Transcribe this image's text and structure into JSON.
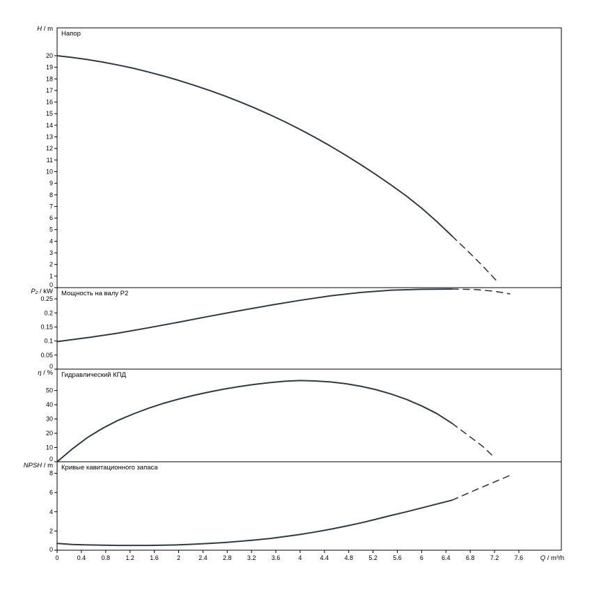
{
  "style": {
    "line_color": "#2f3a42",
    "axis_color": "#000000",
    "text_color": "#000000",
    "background": "#ffffff"
  },
  "xaxis": {
    "label_var": "Q",
    "label_unit": " / m³/h",
    "xlim": [
      0,
      8.3
    ],
    "tick_values": [
      0,
      0.4,
      0.8,
      1.2,
      1.6,
      2,
      2.4,
      2.8,
      3.2,
      3.6,
      4,
      4.4,
      4.8,
      5.2,
      5.6,
      6,
      6.4,
      6.8,
      7.2,
      7.6
    ],
    "tick_labels": [
      "0",
      "0.4",
      "0.8",
      "1.2",
      "1.6",
      "2",
      "2.4",
      "2.8",
      "3.2",
      "3.6",
      "4",
      "4.4",
      "4.8",
      "5.2",
      "5.6",
      "6",
      "6.4",
      "6.8",
      "7.2",
      "7.6"
    ]
  },
  "chart_data": [
    {
      "type": "line",
      "title": "Напор",
      "ylabel_var": "H",
      "ylabel_unit": " / m",
      "ylim": [
        0,
        22.4
      ],
      "ytick_values": [
        0,
        1,
        2,
        3,
        4,
        5,
        6,
        7,
        8,
        9,
        10,
        11,
        12,
        13,
        14,
        15,
        16,
        17,
        18,
        19,
        20
      ],
      "ytick_labels": [
        "0",
        "1",
        "2",
        "3",
        "4",
        "5",
        "6",
        "7",
        "8",
        "9",
        "10",
        "11",
        "12",
        "13",
        "14",
        "15",
        "16",
        "17",
        "18",
        "19",
        "20"
      ],
      "grid": false,
      "series": [
        {
          "name": "head-solid",
          "style": "solid",
          "points": [
            [
              0,
              20
            ],
            [
              0.25,
              19.85
            ],
            [
              0.5,
              19.67
            ],
            [
              0.75,
              19.45
            ],
            [
              1,
              19.2
            ],
            [
              1.25,
              18.92
            ],
            [
              1.5,
              18.6
            ],
            [
              1.75,
              18.25
            ],
            [
              2,
              17.87
            ],
            [
              2.25,
              17.46
            ],
            [
              2.5,
              17.02
            ],
            [
              2.75,
              16.55
            ],
            [
              3,
              16.04
            ],
            [
              3.25,
              15.5
            ],
            [
              3.5,
              14.92
            ],
            [
              3.75,
              14.3
            ],
            [
              4,
              13.64
            ],
            [
              4.25,
              12.94
            ],
            [
              4.5,
              12.2
            ],
            [
              4.75,
              11.42
            ],
            [
              5,
              10.6
            ],
            [
              5.25,
              9.74
            ],
            [
              5.5,
              8.84
            ],
            [
              5.75,
              7.9
            ],
            [
              6,
              6.85
            ],
            [
              6.25,
              5.7
            ],
            [
              6.5,
              4.45
            ]
          ]
        },
        {
          "name": "head-extrapolated",
          "style": "dashed",
          "points": [
            [
              6.5,
              4.45
            ],
            [
              6.75,
              3.2
            ],
            [
              7,
              1.9
            ],
            [
              7.25,
              0.5
            ]
          ]
        }
      ]
    },
    {
      "type": "line",
      "title": "Мощность на валу P2",
      "ylabel_var": "P₂",
      "ylabel_unit": " / kW",
      "ylim": [
        0,
        0.29
      ],
      "ytick_values": [
        0,
        0.05,
        0.1,
        0.15,
        0.2,
        0.25
      ],
      "ytick_labels": [
        "0",
        "0.05",
        "0.1",
        "0.15",
        "0.2",
        "0.25"
      ],
      "grid": false,
      "series": [
        {
          "name": "power-solid",
          "style": "solid",
          "points": [
            [
              0,
              0.098
            ],
            [
              0.5,
              0.112
            ],
            [
              1,
              0.128
            ],
            [
              1.5,
              0.147
            ],
            [
              2,
              0.167
            ],
            [
              2.5,
              0.188
            ],
            [
              3,
              0.208
            ],
            [
              3.5,
              0.227
            ],
            [
              4,
              0.245
            ],
            [
              4.5,
              0.261
            ],
            [
              5,
              0.273
            ],
            [
              5.5,
              0.281
            ],
            [
              6,
              0.284
            ],
            [
              6.5,
              0.285
            ]
          ]
        },
        {
          "name": "power-extrapolated",
          "style": "dashed",
          "points": [
            [
              6.5,
              0.285
            ],
            [
              6.9,
              0.283
            ],
            [
              7.2,
              0.277
            ],
            [
              7.45,
              0.268
            ]
          ]
        }
      ]
    },
    {
      "type": "line",
      "title": "Гидравлический КПД",
      "ylabel_var": "η",
      "ylabel_unit": " / %",
      "ylim": [
        0,
        65
      ],
      "ytick_values": [
        0,
        10,
        20,
        30,
        40,
        50
      ],
      "ytick_labels": [
        "0",
        "10",
        "20",
        "30",
        "40",
        "50"
      ],
      "grid": false,
      "series": [
        {
          "name": "efficiency-solid",
          "style": "solid",
          "points": [
            [
              0,
              0
            ],
            [
              0.25,
              9
            ],
            [
              0.5,
              17
            ],
            [
              0.75,
              23.5
            ],
            [
              1,
              29
            ],
            [
              1.25,
              33.5
            ],
            [
              1.5,
              37.5
            ],
            [
              1.75,
              41
            ],
            [
              2,
              44
            ],
            [
              2.25,
              46.6
            ],
            [
              2.5,
              48.9
            ],
            [
              2.75,
              51
            ],
            [
              3,
              52.8
            ],
            [
              3.25,
              54.3
            ],
            [
              3.5,
              55.5
            ],
            [
              3.75,
              56.5
            ],
            [
              4,
              57
            ],
            [
              4.25,
              56.7
            ],
            [
              4.5,
              56
            ],
            [
              4.75,
              54.8
            ],
            [
              5,
              53
            ],
            [
              5.25,
              50.6
            ],
            [
              5.5,
              47.5
            ],
            [
              5.75,
              43.8
            ],
            [
              6,
              39.2
            ],
            [
              6.25,
              33.8
            ],
            [
              6.5,
              27
            ]
          ]
        },
        {
          "name": "efficiency-extrapolated",
          "style": "dashed",
          "points": [
            [
              6.5,
              27
            ],
            [
              6.75,
              19
            ],
            [
              7,
              11
            ],
            [
              7.2,
              3
            ]
          ]
        }
      ]
    },
    {
      "type": "line",
      "title": "Кривые кавитационного запаса",
      "ylabel_var": "NPSH",
      "ylabel_unit": " / m",
      "ylim": [
        0,
        9.2
      ],
      "ytick_values": [
        0,
        2,
        4,
        6,
        8
      ],
      "ytick_labels": [
        "0",
        "2",
        "4",
        "6",
        "8"
      ],
      "grid": false,
      "series": [
        {
          "name": "npsh-solid",
          "style": "solid",
          "points": [
            [
              0,
              0.7
            ],
            [
              0.25,
              0.6
            ],
            [
              0.5,
              0.55
            ],
            [
              0.75,
              0.52
            ],
            [
              1,
              0.5
            ],
            [
              1.25,
              0.5
            ],
            [
              1.5,
              0.5
            ],
            [
              1.75,
              0.52
            ],
            [
              2,
              0.56
            ],
            [
              2.25,
              0.62
            ],
            [
              2.5,
              0.7
            ],
            [
              2.75,
              0.8
            ],
            [
              3,
              0.92
            ],
            [
              3.25,
              1.06
            ],
            [
              3.5,
              1.22
            ],
            [
              3.75,
              1.42
            ],
            [
              4,
              1.64
            ],
            [
              4.25,
              1.9
            ],
            [
              4.5,
              2.18
            ],
            [
              4.75,
              2.5
            ],
            [
              5,
              2.84
            ],
            [
              5.25,
              3.22
            ],
            [
              5.5,
              3.62
            ],
            [
              5.75,
              4
            ],
            [
              6,
              4.4
            ],
            [
              6.25,
              4.8
            ],
            [
              6.5,
              5.2
            ]
          ]
        },
        {
          "name": "npsh-extrapolated",
          "style": "dashed",
          "points": [
            [
              6.5,
              5.2
            ],
            [
              6.9,
              6.3
            ],
            [
              7.2,
              7.1
            ],
            [
              7.5,
              7.9
            ]
          ]
        }
      ]
    }
  ]
}
